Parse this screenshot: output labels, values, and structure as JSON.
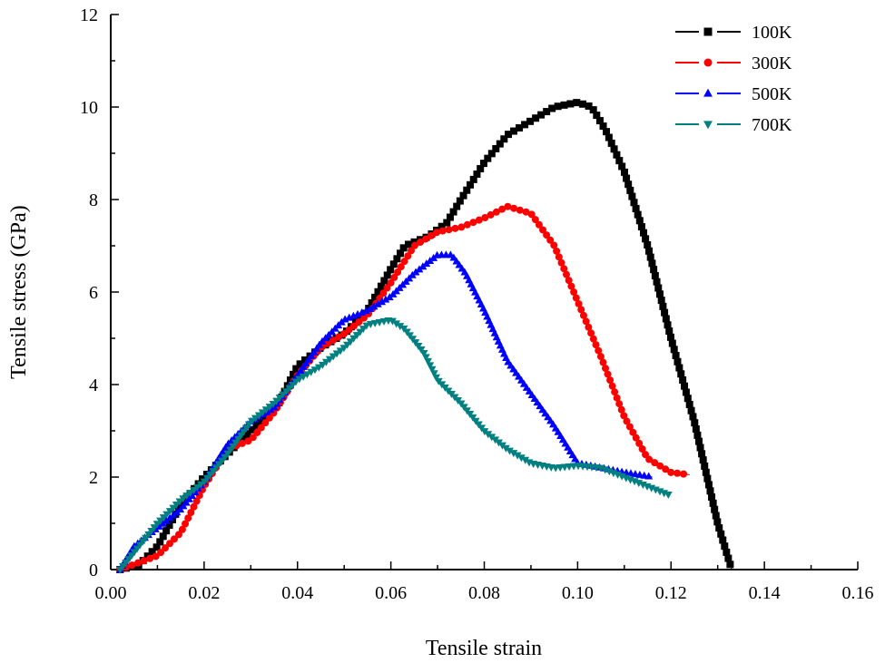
{
  "chart_data": {
    "type": "line",
    "title": "",
    "xlabel": "Tensile strain",
    "ylabel": "Tensile stress (GPa)",
    "xlim": [
      0,
      0.16
    ],
    "ylim": [
      0,
      12
    ],
    "xticks": [
      "0.00",
      "0.02",
      "0.04",
      "0.06",
      "0.08",
      "0.10",
      "0.12",
      "0.14",
      "0.16"
    ],
    "yticks": [
      "0",
      "2",
      "4",
      "6",
      "8",
      "10",
      "12"
    ],
    "legend_position": "top-right",
    "grid": false,
    "series": [
      {
        "name": "100K",
        "color": "#000000",
        "marker": "square",
        "x": [
          0.002,
          0.006,
          0.01,
          0.015,
          0.02,
          0.03,
          0.036,
          0.04,
          0.045,
          0.05,
          0.055,
          0.06,
          0.063,
          0.068,
          0.072,
          0.075,
          0.08,
          0.085,
          0.09,
          0.095,
          0.1,
          0.103,
          0.106,
          0.11,
          0.115,
          0.12,
          0.125,
          0.13,
          0.133
        ],
        "y": [
          0,
          0.1,
          0.5,
          1.4,
          2.0,
          3.0,
          3.6,
          4.4,
          4.8,
          5.1,
          5.6,
          6.5,
          7.0,
          7.2,
          7.5,
          8.0,
          8.8,
          9.4,
          9.7,
          10.0,
          10.1,
          10.0,
          9.5,
          8.6,
          7.0,
          5.0,
          3.2,
          1.0,
          0
        ]
      },
      {
        "name": "300K",
        "color": "#ff0000",
        "marker": "circle",
        "x": [
          0.002,
          0.01,
          0.015,
          0.02,
          0.025,
          0.03,
          0.035,
          0.04,
          0.045,
          0.05,
          0.055,
          0.06,
          0.065,
          0.07,
          0.075,
          0.08,
          0.085,
          0.09,
          0.095,
          0.1,
          0.105,
          0.11,
          0.115,
          0.12,
          0.124
        ],
        "y": [
          0,
          0.3,
          0.8,
          1.8,
          2.6,
          2.8,
          3.4,
          4.2,
          4.8,
          5.1,
          5.5,
          6.2,
          7.0,
          7.3,
          7.4,
          7.6,
          7.85,
          7.7,
          7.0,
          5.8,
          4.6,
          3.3,
          2.4,
          2.1,
          2.05
        ]
      },
      {
        "name": "500K",
        "color": "#0000ff",
        "marker": "triangle-up",
        "x": [
          0.002,
          0.005,
          0.01,
          0.015,
          0.02,
          0.025,
          0.03,
          0.035,
          0.04,
          0.045,
          0.05,
          0.055,
          0.06,
          0.065,
          0.07,
          0.073,
          0.076,
          0.08,
          0.085,
          0.09,
          0.095,
          0.1,
          0.105,
          0.11,
          0.116
        ],
        "y": [
          0,
          0.5,
          0.9,
          1.3,
          1.9,
          2.7,
          3.2,
          3.5,
          4.2,
          4.9,
          5.4,
          5.6,
          5.9,
          6.4,
          6.8,
          6.8,
          6.4,
          5.6,
          4.5,
          3.8,
          3.1,
          2.3,
          2.2,
          2.1,
          2.0
        ]
      },
      {
        "name": "700K",
        "color": "#008080",
        "marker": "triangle-down",
        "x": [
          0.002,
          0.01,
          0.015,
          0.02,
          0.025,
          0.03,
          0.035,
          0.04,
          0.045,
          0.05,
          0.055,
          0.06,
          0.063,
          0.067,
          0.07,
          0.075,
          0.08,
          0.085,
          0.09,
          0.095,
          0.1,
          0.105,
          0.11,
          0.115,
          0.12
        ],
        "y": [
          0,
          1.0,
          1.5,
          1.9,
          2.5,
          3.2,
          3.6,
          4.1,
          4.4,
          4.8,
          5.3,
          5.4,
          5.2,
          4.7,
          4.1,
          3.6,
          3.0,
          2.6,
          2.3,
          2.2,
          2.25,
          2.2,
          2.0,
          1.8,
          1.6
        ]
      }
    ]
  }
}
